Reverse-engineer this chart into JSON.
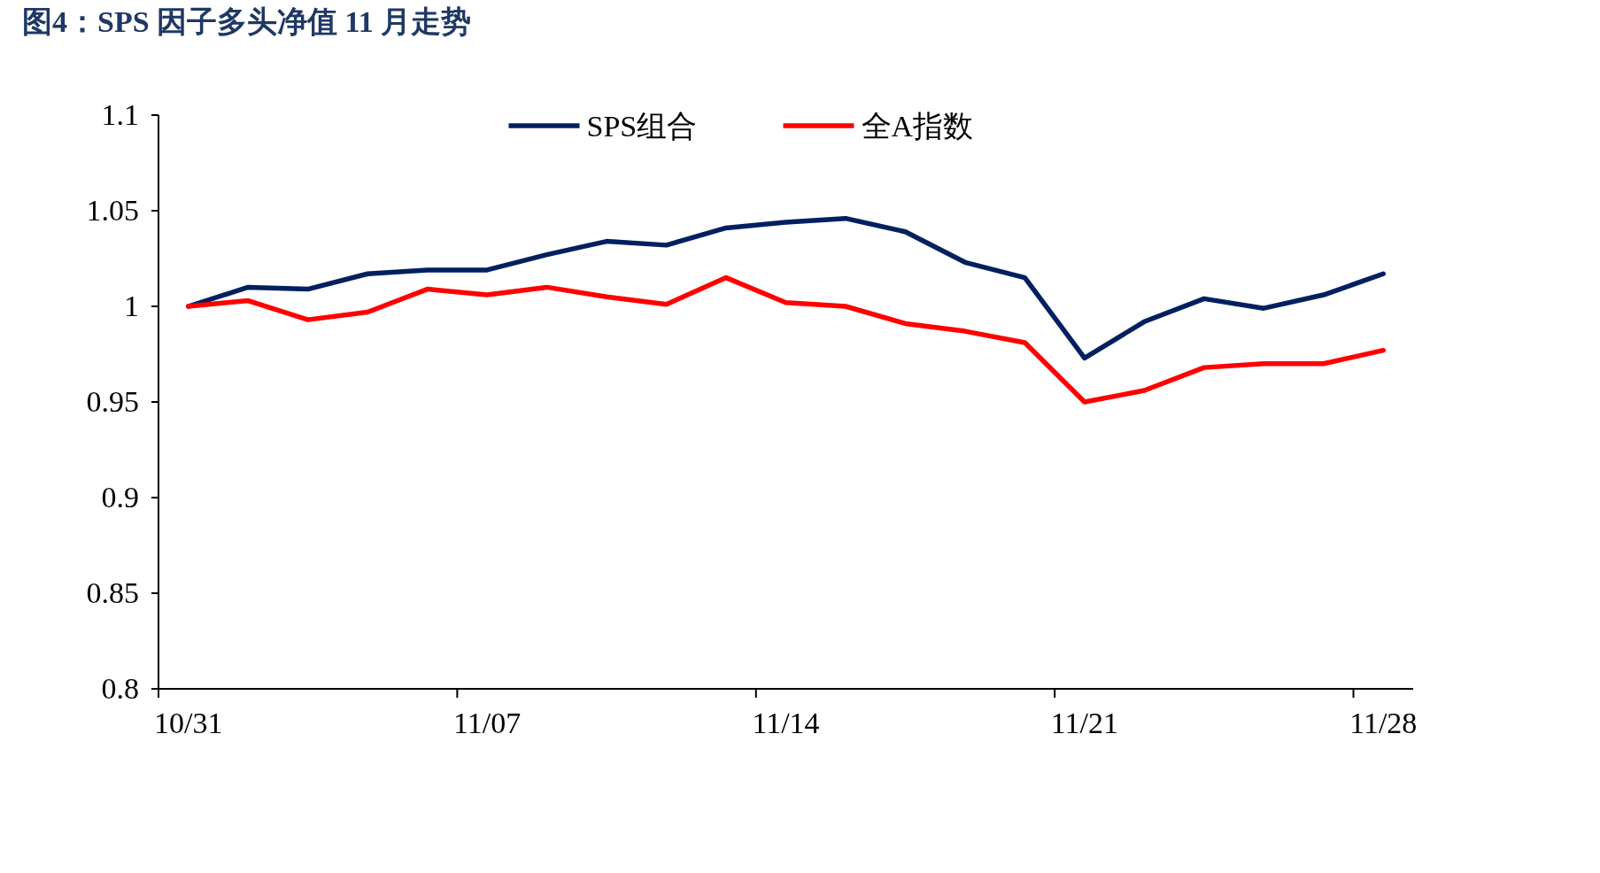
{
  "chart_data": {
    "type": "line",
    "title": "图4：SPS 因子多头净值 11 月走势",
    "categories": [
      "10/31",
      null,
      null,
      null,
      null,
      "11/07",
      null,
      null,
      null,
      null,
      "11/14",
      null,
      null,
      null,
      null,
      "11/21",
      null,
      null,
      null,
      null,
      "11/28"
    ],
    "series": [
      {
        "name": "SPS组合",
        "color": "#002060",
        "values": [
          1.0,
          1.01,
          1.009,
          1.017,
          1.019,
          1.019,
          1.027,
          1.034,
          1.032,
          1.041,
          1.044,
          1.046,
          1.039,
          1.023,
          1.015,
          0.973,
          0.992,
          1.004,
          0.999,
          1.006,
          1.017
        ]
      },
      {
        "name": "全A指数",
        "color": "#ff0000",
        "values": [
          1.0,
          1.003,
          0.993,
          0.997,
          1.009,
          1.006,
          1.01,
          1.005,
          1.001,
          1.015,
          1.002,
          1.0,
          0.991,
          0.987,
          0.981,
          0.95,
          0.956,
          0.968,
          0.97,
          0.97,
          0.977
        ]
      }
    ],
    "ylim": [
      0.8,
      1.1
    ],
    "yticks": [
      0.8,
      0.85,
      0.9,
      0.95,
      1,
      1.05,
      1.1
    ],
    "legend": "top"
  }
}
